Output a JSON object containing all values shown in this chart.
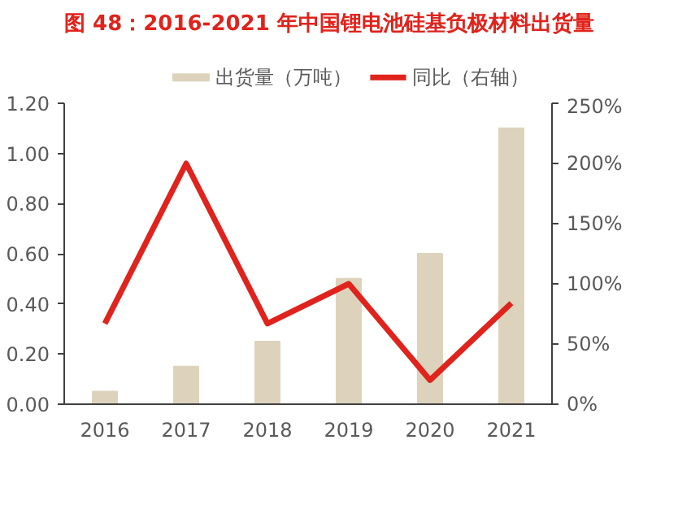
{
  "chart_data": {
    "type": "bar",
    "title": "图 48：2016-2021 年中国锂电池硅基负极材料出货量",
    "categories": [
      "2016",
      "2017",
      "2018",
      "2019",
      "2020",
      "2021"
    ],
    "series": [
      {
        "name": "出货量（万吨）",
        "color": "#ddd3bd",
        "values": [
          0.05,
          0.15,
          0.25,
          0.5,
          0.6,
          1.1
        ]
      },
      {
        "name": "同比（右轴）",
        "type": "line",
        "axis": "y2",
        "color": "#e0231c",
        "values": [
          67,
          200,
          67,
          100,
          20,
          84
        ]
      }
    ],
    "ylim": [
      0,
      1.2
    ],
    "yticks": [
      {
        "value": 0,
        "label": "0.00"
      },
      {
        "value": 0.2,
        "label": "0.20"
      },
      {
        "value": 0.4,
        "label": "0.40"
      },
      {
        "value": 0.6,
        "label": "0.60"
      },
      {
        "value": 0.8,
        "label": "0.80"
      },
      {
        "value": 1.0,
        "label": "1.00"
      },
      {
        "value": 1.2,
        "label": "1.20"
      }
    ],
    "y2lim": [
      0,
      250
    ],
    "y2ticks": [
      {
        "value": 0,
        "label": "0%"
      },
      {
        "value": 50,
        "label": "50%"
      },
      {
        "value": 100,
        "label": "100%"
      },
      {
        "value": 150,
        "label": "150%"
      },
      {
        "value": 200,
        "label": "200%"
      },
      {
        "value": 250,
        "label": "250%"
      }
    ],
    "grid": false,
    "legend": "top",
    "marker": "none",
    "line_style": "solid"
  }
}
